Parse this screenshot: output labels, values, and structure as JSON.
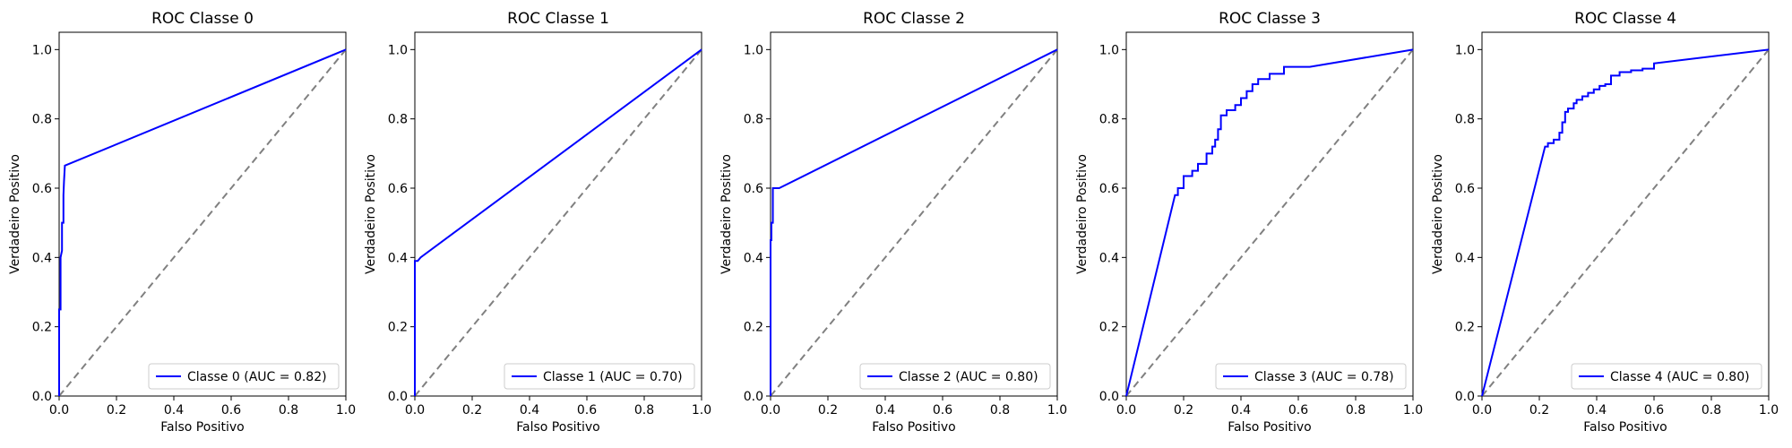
{
  "colors": {
    "roc_line": "#0000ff",
    "diagonal": "#808080",
    "legend_border": "#cccccc",
    "axes": "#000000"
  },
  "chart_data": [
    {
      "type": "line",
      "title": "ROC Classe 0",
      "xlabel": "Falso Positivo",
      "ylabel": "Verdadeiro Positivo",
      "xlim": [
        0,
        1
      ],
      "ylim": [
        0,
        1.05
      ],
      "xticks": [
        "0.0",
        "0.2",
        "0.4",
        "0.6",
        "0.8",
        "1.0"
      ],
      "yticks": [
        "0.0",
        "0.2",
        "0.4",
        "0.6",
        "0.8",
        "1.0"
      ],
      "legend_position": "lower-right",
      "series": [
        {
          "name": "Classe 0 (AUC = 0.82)",
          "x": [
            0,
            0,
            0.005,
            0.005,
            0.01,
            0.01,
            0.012,
            0.015,
            0.015,
            0.017,
            0.02,
            1.0
          ],
          "y": [
            0,
            0.25,
            0.25,
            0.4,
            0.42,
            0.5,
            0.5,
            0.5,
            0.58,
            0.62,
            0.665,
            1.0
          ]
        }
      ],
      "reference_line": {
        "x": [
          0,
          1
        ],
        "y": [
          0,
          1
        ],
        "style": "dashed"
      }
    },
    {
      "type": "line",
      "title": "ROC Classe 1",
      "xlabel": "Falso Positivo",
      "ylabel": "Verdadeiro Positivo",
      "xlim": [
        0,
        1
      ],
      "ylim": [
        0,
        1.05
      ],
      "xticks": [
        "0.0",
        "0.2",
        "0.4",
        "0.6",
        "0.8",
        "1.0"
      ],
      "yticks": [
        "0.0",
        "0.2",
        "0.4",
        "0.6",
        "0.8",
        "1.0"
      ],
      "legend_position": "lower-right",
      "series": [
        {
          "name": "Classe 1 (AUC = 0.70)",
          "x": [
            0,
            0,
            0.01,
            0.02,
            1.0
          ],
          "y": [
            0,
            0.39,
            0.39,
            0.4,
            1.0
          ]
        }
      ],
      "reference_line": {
        "x": [
          0,
          1
        ],
        "y": [
          0,
          1
        ],
        "style": "dashed"
      }
    },
    {
      "type": "line",
      "title": "ROC Classe 2",
      "xlabel": "Falso Positivo",
      "ylabel": "Verdadeiro Positivo",
      "xlim": [
        0,
        1
      ],
      "ylim": [
        0,
        1.05
      ],
      "xticks": [
        "0.0",
        "0.2",
        "0.4",
        "0.6",
        "0.8",
        "1.0"
      ],
      "yticks": [
        "0.0",
        "0.2",
        "0.4",
        "0.6",
        "0.8",
        "1.0"
      ],
      "legend_position": "lower-right",
      "series": [
        {
          "name": "Classe 2 (AUC = 0.80)",
          "x": [
            0,
            0,
            0.003,
            0.003,
            0.008,
            0.008,
            0.03,
            1.0
          ],
          "y": [
            0,
            0.45,
            0.45,
            0.5,
            0.5,
            0.6,
            0.6,
            1.0
          ]
        }
      ],
      "reference_line": {
        "x": [
          0,
          1
        ],
        "y": [
          0,
          1
        ],
        "style": "dashed"
      }
    },
    {
      "type": "line",
      "title": "ROC Classe 3",
      "xlabel": "Falso Positivo",
      "ylabel": "Verdadeiro Positivo",
      "xlim": [
        0,
        1
      ],
      "ylim": [
        0,
        1.05
      ],
      "xticks": [
        "0.0",
        "0.2",
        "0.4",
        "0.6",
        "0.8",
        "1.0"
      ],
      "yticks": [
        "0.0",
        "0.2",
        "0.4",
        "0.6",
        "0.8",
        "1.0"
      ],
      "legend_position": "lower-right",
      "series": [
        {
          "name": "Classe 3 (AUC = 0.78)",
          "x": [
            0,
            0.17,
            0.18,
            0.18,
            0.2,
            0.2,
            0.23,
            0.23,
            0.25,
            0.25,
            0.28,
            0.28,
            0.3,
            0.3,
            0.31,
            0.31,
            0.32,
            0.32,
            0.33,
            0.33,
            0.35,
            0.35,
            0.38,
            0.38,
            0.4,
            0.4,
            0.42,
            0.42,
            0.44,
            0.44,
            0.46,
            0.46,
            0.5,
            0.5,
            0.55,
            0.55,
            0.64,
            1.0
          ],
          "y": [
            0,
            0.58,
            0.58,
            0.6,
            0.6,
            0.635,
            0.635,
            0.65,
            0.65,
            0.67,
            0.67,
            0.7,
            0.7,
            0.72,
            0.72,
            0.74,
            0.74,
            0.77,
            0.77,
            0.81,
            0.81,
            0.825,
            0.825,
            0.84,
            0.84,
            0.86,
            0.86,
            0.88,
            0.88,
            0.9,
            0.9,
            0.915,
            0.915,
            0.93,
            0.93,
            0.95,
            0.95,
            1.0
          ]
        }
      ],
      "reference_line": {
        "x": [
          0,
          1
        ],
        "y": [
          0,
          1
        ],
        "style": "dashed"
      }
    },
    {
      "type": "line",
      "title": "ROC Classe 4",
      "xlabel": "Falso Positivo",
      "ylabel": "Verdadeiro Positivo",
      "xlim": [
        0,
        1
      ],
      "ylim": [
        0,
        1.05
      ],
      "xticks": [
        "0.0",
        "0.2",
        "0.4",
        "0.6",
        "0.8",
        "1.0"
      ],
      "yticks": [
        "0.0",
        "0.2",
        "0.4",
        "0.6",
        "0.8",
        "1.0"
      ],
      "legend_position": "lower-right",
      "series": [
        {
          "name": "Classe 4 (AUC = 0.80)",
          "x": [
            0,
            0.22,
            0.23,
            0.23,
            0.25,
            0.25,
            0.27,
            0.27,
            0.28,
            0.28,
            0.29,
            0.29,
            0.3,
            0.3,
            0.32,
            0.32,
            0.33,
            0.33,
            0.35,
            0.35,
            0.37,
            0.37,
            0.39,
            0.39,
            0.41,
            0.41,
            0.43,
            0.43,
            0.45,
            0.45,
            0.48,
            0.48,
            0.52,
            0.52,
            0.56,
            0.56,
            0.6,
            0.6,
            1.0
          ],
          "y": [
            0,
            0.72,
            0.72,
            0.73,
            0.73,
            0.74,
            0.74,
            0.76,
            0.76,
            0.79,
            0.79,
            0.82,
            0.82,
            0.83,
            0.83,
            0.845,
            0.845,
            0.855,
            0.855,
            0.865,
            0.865,
            0.875,
            0.875,
            0.885,
            0.885,
            0.895,
            0.895,
            0.9,
            0.9,
            0.925,
            0.925,
            0.935,
            0.935,
            0.94,
            0.94,
            0.945,
            0.945,
            0.96,
            1.0
          ]
        }
      ],
      "reference_line": {
        "x": [
          0,
          1
        ],
        "y": [
          0,
          1
        ],
        "style": "dashed"
      }
    }
  ]
}
